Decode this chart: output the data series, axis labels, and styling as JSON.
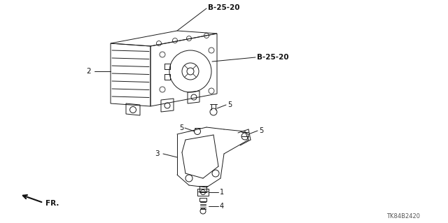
{
  "bg_color": "#ffffff",
  "part_code_top": "B-25-20",
  "part_code_right": "B-25-20",
  "label_2": "2",
  "label_3": "3",
  "label_4": "4",
  "label_5a": "5",
  "label_5b": "5",
  "label_5c": "5",
  "label_1": "1",
  "watermark": "TK84B2420",
  "fr_label": "FR.",
  "line_color": "#1a1a1a",
  "text_color": "#111111"
}
